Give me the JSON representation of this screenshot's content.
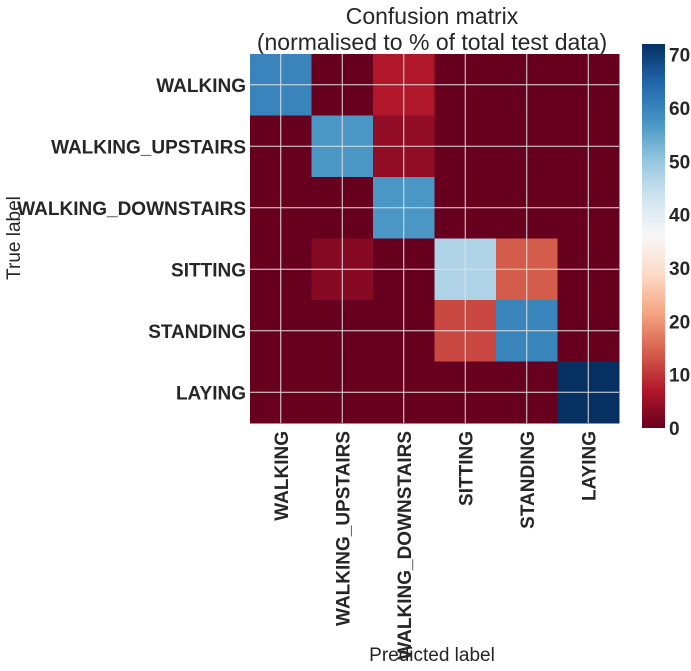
{
  "chart_data": {
    "type": "heatmap",
    "title_lines": [
      "Confusion matrix",
      "(normalised to % of total test data)"
    ],
    "xlabel": "Predicted label",
    "ylabel": "True label",
    "x_categories": [
      "WALKING",
      "WALKING_UPSTAIRS",
      "WALKING_DOWNSTAIRS",
      "SITTING",
      "STANDING",
      "LAYING"
    ],
    "y_categories": [
      "WALKING",
      "WALKING_UPSTAIRS",
      "WALKING_DOWNSTAIRS",
      "SITTING",
      "STANDING",
      "LAYING"
    ],
    "values": [
      [
        60.0,
        0.0,
        7.0,
        0.0,
        0.0,
        0.0
      ],
      [
        0.0,
        57.0,
        4.0,
        0.0,
        0.0,
        0.0
      ],
      [
        0.0,
        0.0,
        57.0,
        0.0,
        0.0,
        0.0
      ],
      [
        0.0,
        3.0,
        0.0,
        47.0,
        14.0,
        0.0
      ],
      [
        0.0,
        0.0,
        0.0,
        12.0,
        60.0,
        0.0
      ],
      [
        0.0,
        0.0,
        0.0,
        0.0,
        0.0,
        72.0
      ]
    ],
    "colormap": "RdBu",
    "colorbar": {
      "min": 0,
      "max": 72,
      "ticks": [
        0,
        10,
        20,
        30,
        40,
        50,
        60,
        70
      ]
    },
    "grid": true,
    "colors": {
      "low": "#67001f",
      "mid": "#f7f7f7",
      "high": "#053061",
      "grid": "#e0e0e0"
    }
  }
}
